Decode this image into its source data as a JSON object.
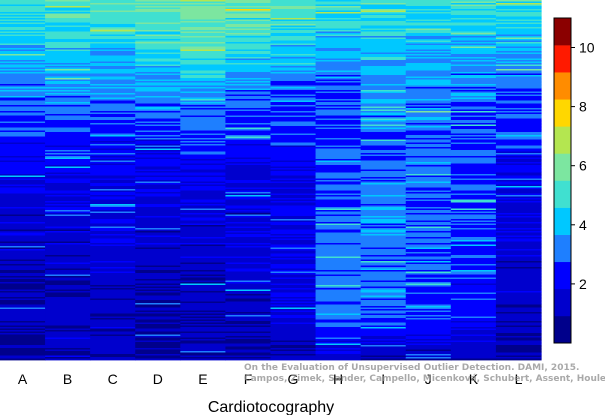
{
  "chart_data": {
    "type": "heatmap",
    "title": "",
    "xlabel": "Cardiotocography",
    "ylabel": "",
    "categories": [
      "A",
      "B",
      "C",
      "D",
      "E",
      "F",
      "G",
      "H",
      "I",
      "J",
      "K",
      "L"
    ],
    "colorbar": {
      "min": 0,
      "max": 11,
      "ticks": [
        2,
        4,
        6,
        8,
        10
      ],
      "colors": [
        "#00008B",
        "#0000CD",
        "#0000FF",
        "#1E7FFF",
        "#00C8FF",
        "#40E0D0",
        "#7CE6A0",
        "#B4E650",
        "#FFD700",
        "#FF8C00",
        "#FF1A00",
        "#8B0000"
      ]
    },
    "column_profiles": [
      [
        5.2,
        4.1,
        3.2,
        2.5,
        1.7,
        1.4,
        1.2,
        1.0,
        0.8
      ],
      [
        5.3,
        4.4,
        3.3,
        2.6,
        1.9,
        1.5,
        1.3,
        1.1,
        0.9
      ],
      [
        5.4,
        4.3,
        3.2,
        2.5,
        2.0,
        1.7,
        1.5,
        1.2,
        0.9
      ],
      [
        5.6,
        4.9,
        3.4,
        2.5,
        1.8,
        1.4,
        1.2,
        1.0,
        0.8
      ],
      [
        5.8,
        5.3,
        3.6,
        2.6,
        1.9,
        1.5,
        1.3,
        1.1,
        0.9
      ],
      [
        5.5,
        4.8,
        3.2,
        2.3,
        1.7,
        1.4,
        1.6,
        1.2,
        0.9
      ],
      [
        5.3,
        4.4,
        3.1,
        2.4,
        1.9,
        1.7,
        1.8,
        1.6,
        1.0
      ],
      [
        4.9,
        3.8,
        2.9,
        2.6,
        2.9,
        3.0,
        3.1,
        3.2,
        1.3
      ],
      [
        5.0,
        4.2,
        3.4,
        3.0,
        3.1,
        3.3,
        3.0,
        2.8,
        1.1
      ],
      [
        4.9,
        4.0,
        3.3,
        3.0,
        3.0,
        2.9,
        2.8,
        2.6,
        1.0
      ],
      [
        5.0,
        3.9,
        3.1,
        2.8,
        2.6,
        2.6,
        2.4,
        2.2,
        1.0
      ],
      [
        5.1,
        4.0,
        3.0,
        2.4,
        1.8,
        1.5,
        1.3,
        1.1,
        0.9
      ]
    ]
  },
  "watermark": {
    "line1": "On the Evaluation of Unsupervised Outlier Detection. DAMI, 2015.",
    "line2": "Campos, Zimek, Sander, Campello, Micenková, Schubert, Assent, Houle"
  }
}
